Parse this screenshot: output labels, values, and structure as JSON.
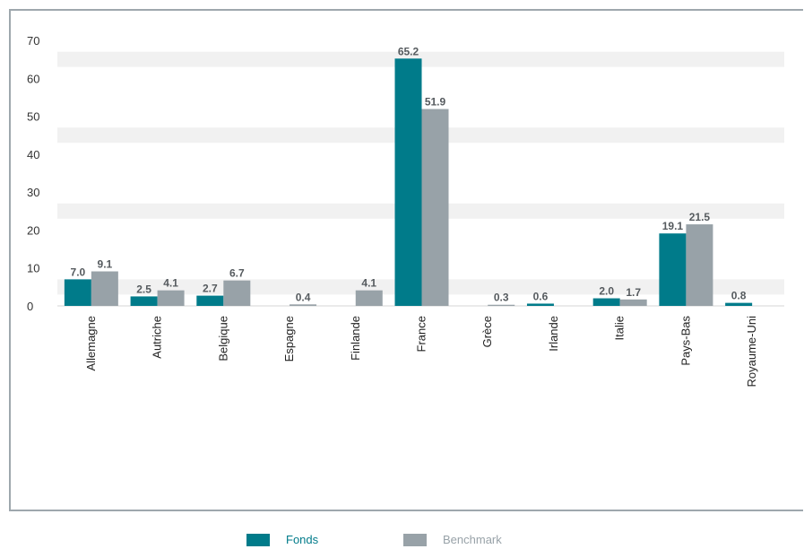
{
  "chart_data": {
    "type": "bar",
    "categories": [
      "Allemagne",
      "Autriche",
      "Belgique",
      "Espagne",
      "Finlande",
      "France",
      "Grèce",
      "Irlande",
      "Italie",
      "Pays-Bas",
      "Royaume-Uni"
    ],
    "series": [
      {
        "name": "Fonds",
        "color": "#007b8a",
        "values": [
          7.0,
          2.5,
          2.7,
          0,
          0,
          65.2,
          0,
          0.6,
          2.0,
          19.1,
          0.8
        ],
        "labels": [
          "7.0",
          "2.5",
          "2.7",
          "",
          "",
          "65.2",
          "",
          "0.6",
          "2.0",
          "19.1",
          "0.8"
        ]
      },
      {
        "name": "Benchmark",
        "color": "#98a2a8",
        "values": [
          9.1,
          4.1,
          6.7,
          0.4,
          4.1,
          51.9,
          0.3,
          0,
          1.7,
          21.5,
          0
        ],
        "labels": [
          "9.1",
          "4.1",
          "6.7",
          "0.4",
          "4.1",
          "51.9",
          "0.3",
          "",
          "1.7",
          "21.5",
          ""
        ]
      }
    ],
    "ylim": [
      0,
      70
    ],
    "yticks": [
      "0",
      "10",
      "20",
      "30",
      "40",
      "50",
      "60",
      "70"
    ],
    "grid": "horizontal bands",
    "legend": "bottom"
  },
  "legend": {
    "fonds_label": "Fonds",
    "benchmark_label": "Benchmark",
    "fonds_color": "#007b8a",
    "benchmark_color": "#98a2a8"
  }
}
